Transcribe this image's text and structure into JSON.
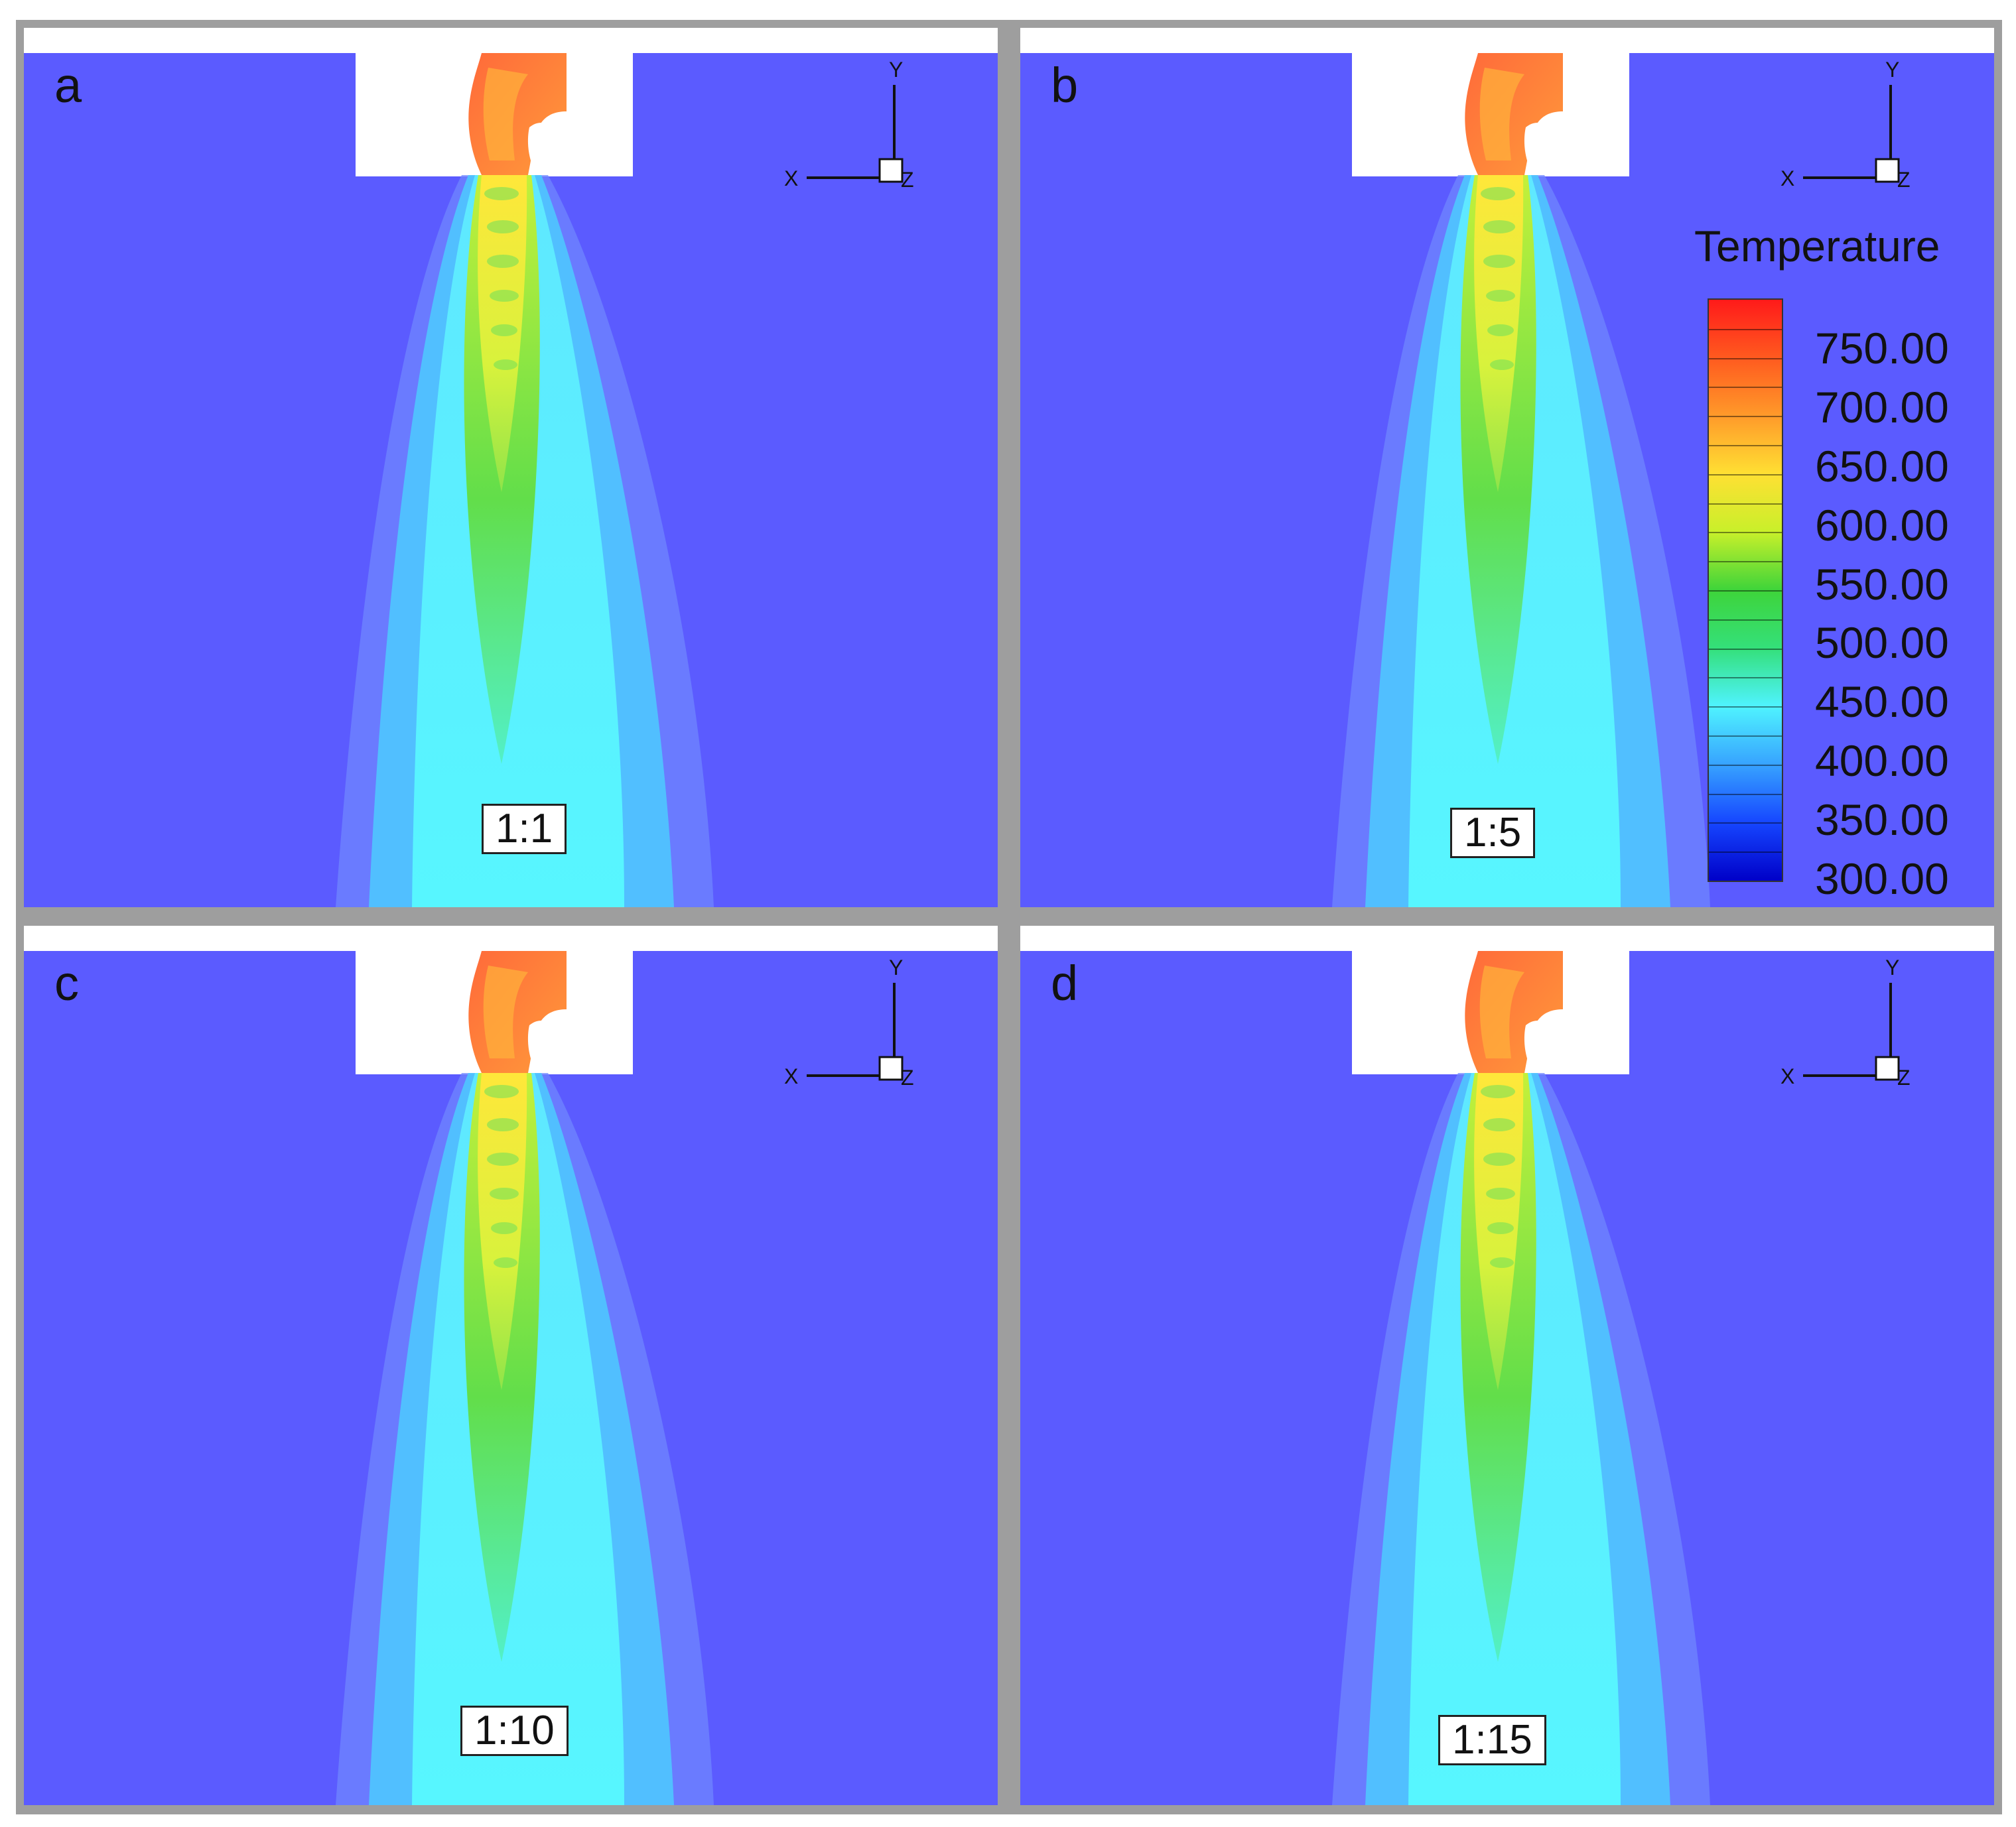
{
  "panels": [
    {
      "id": "a",
      "letter": "a",
      "ratio": "1:1"
    },
    {
      "id": "b",
      "letter": "b",
      "ratio": "1:5"
    },
    {
      "id": "c",
      "letter": "c",
      "ratio": "1:10"
    },
    {
      "id": "d",
      "letter": "d",
      "ratio": "1:15"
    }
  ],
  "axes": {
    "x": "X",
    "y": "Y",
    "z": "Z"
  },
  "colorbar": {
    "title": "Temperature",
    "ticks": [
      "750.00",
      "700.00",
      "650.00",
      "600.00",
      "550.00",
      "500.00",
      "450.00",
      "400.00",
      "350.00",
      "300.00"
    ],
    "colors": {
      "max": "#ff1a1a",
      "min": "#0000c8",
      "background": "#5b5bff"
    }
  }
}
